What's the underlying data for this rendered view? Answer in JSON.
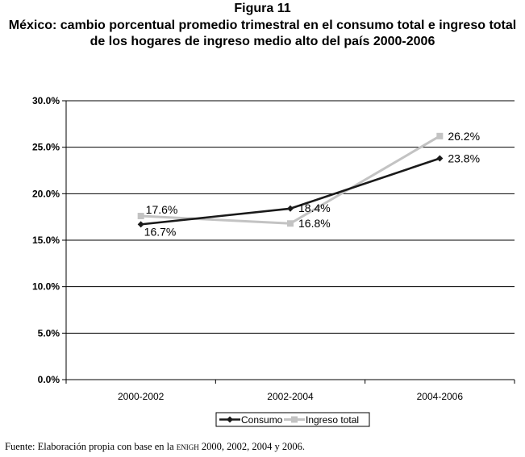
{
  "figure_label": "Figura 11",
  "title": "México: cambio porcentual promedio trimestral en el consumo total e ingreso total de los hogares de ingreso medio alto del país 2000-2006",
  "source": {
    "prefix": "Fuente: Elaboración propia con base en la ",
    "acronym": "enigh",
    "suffix": " 2000, 2002, 2004 y 2006."
  },
  "colors": {
    "consumo": "#1a1a1a",
    "ingreso": "#c3c3c3",
    "grid": "#000000"
  },
  "chart_data": {
    "type": "line",
    "title": "",
    "xlabel": "",
    "ylabel": "",
    "categories": [
      "2000-2002",
      "2002-2004",
      "2004-2006"
    ],
    "ylim": [
      0,
      30
    ],
    "yticks": [
      0,
      5,
      10,
      15,
      20,
      25,
      30
    ],
    "ytick_labels": [
      "0.0%",
      "5.0%",
      "10.0%",
      "15.0%",
      "20.0%",
      "25.0%",
      "30.0%"
    ],
    "grid": true,
    "legend_position": "bottom",
    "series": [
      {
        "name": "Consumo",
        "values": [
          16.7,
          18.4,
          23.8
        ],
        "labels": [
          "16.7%",
          "18.4%",
          "23.8%"
        ],
        "marker": "diamond"
      },
      {
        "name": "Ingreso total",
        "values": [
          17.6,
          16.8,
          26.2
        ],
        "labels": [
          "17.6%",
          "16.8%",
          "26.2%"
        ],
        "marker": "square"
      }
    ]
  }
}
